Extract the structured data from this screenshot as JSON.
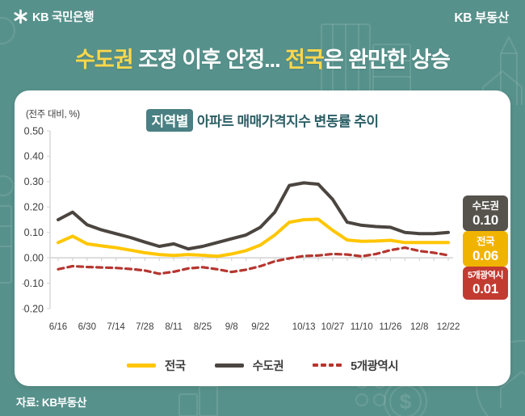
{
  "header": {
    "logo_icon": "kb-star-icon",
    "logo_text": "KB 국민은행",
    "brand": "KB 부동산"
  },
  "headline": {
    "segments": [
      {
        "text": "수도권",
        "emphasis": true
      },
      {
        "text": " 조정 이후 안정... ",
        "emphasis": false
      },
      {
        "text": "전국",
        "emphasis": true
      },
      {
        "text": "은 완만한 상승",
        "emphasis": false
      }
    ],
    "emphasis_color": "#ffd84a",
    "base_color": "#ffffff"
  },
  "card": {
    "unit_label": "(전주 대비, %)",
    "title_badge": "지역별",
    "title_text": "아파트 매매가격지수 변동률 추이"
  },
  "chart_data": {
    "type": "line",
    "title": "지역별 아파트 매매가격지수 변동률 추이",
    "ylabel": "전주 대비, %",
    "ylim": [
      -0.2,
      0.5
    ],
    "y_ticks": [
      "0.50",
      "0.40",
      "0.30",
      "0.20",
      "0.10",
      "0.00",
      "-0.10",
      "-0.20"
    ],
    "x_labels": [
      "6/16",
      "6/30",
      "7/14",
      "7/28",
      "8/11",
      "8/25",
      "9/8",
      "9/22",
      "10/13",
      "10/27",
      "11/10",
      "11/26",
      "12/8",
      "12/22"
    ],
    "label_indices": [
      0,
      2,
      4,
      6,
      8,
      10,
      12,
      14,
      17,
      19,
      21,
      23,
      25,
      27
    ],
    "n_points": 28,
    "grid": false,
    "legend_position": "bottom",
    "series": [
      {
        "name": "전국",
        "color": "#ffc602",
        "style": "solid",
        "values": [
          0.06,
          0.085,
          0.055,
          0.047,
          0.04,
          0.03,
          0.02,
          0.013,
          0.009,
          0.013,
          0.01,
          0.006,
          0.015,
          0.028,
          0.05,
          0.09,
          0.14,
          0.15,
          0.152,
          0.108,
          0.07,
          0.065,
          0.066,
          0.069,
          0.06,
          0.06,
          0.06,
          0.06
        ]
      },
      {
        "name": "수도권",
        "color": "#4b4540",
        "style": "solid",
        "values": [
          0.15,
          0.18,
          0.13,
          0.11,
          0.095,
          0.08,
          0.062,
          0.045,
          0.055,
          0.035,
          0.045,
          0.06,
          0.075,
          0.09,
          0.12,
          0.18,
          0.285,
          0.295,
          0.29,
          0.23,
          0.14,
          0.128,
          0.123,
          0.12,
          0.1,
          0.095,
          0.095,
          0.1
        ]
      },
      {
        "name": "5개광역시",
        "color": "#b5362f",
        "style": "dashed",
        "values": [
          -0.045,
          -0.033,
          -0.036,
          -0.038,
          -0.04,
          -0.044,
          -0.05,
          -0.063,
          -0.055,
          -0.042,
          -0.037,
          -0.045,
          -0.056,
          -0.047,
          -0.033,
          -0.014,
          -0.002,
          0.007,
          0.009,
          0.015,
          0.013,
          0.006,
          0.015,
          0.03,
          0.04,
          0.027,
          0.02,
          0.01
        ]
      }
    ]
  },
  "callouts": [
    {
      "label": "수도권",
      "value": "0.10",
      "bg": "#56524c"
    },
    {
      "label": "전국",
      "value": "0.06",
      "bg": "#f0b400"
    },
    {
      "label": "5개광역시",
      "value": "0.01",
      "bg": "#c23b31"
    }
  ],
  "footer": {
    "source": "자료: KB부동산"
  }
}
